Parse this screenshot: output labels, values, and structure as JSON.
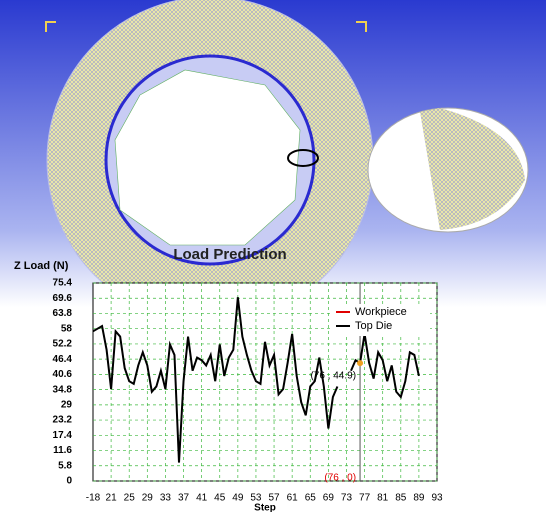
{
  "chart_data": {
    "type": "line",
    "title": "Load Prediction",
    "y_label": "Z Load (N)",
    "x_label": "Step",
    "x_axis_start_label": "-18",
    "xlim": [
      17,
      93
    ],
    "xticks": [
      21,
      25,
      29,
      33,
      37,
      41,
      45,
      49,
      53,
      57,
      61,
      65,
      69,
      73,
      77,
      81,
      85,
      89,
      93
    ],
    "ylim": [
      0,
      75.4
    ],
    "yticks": [
      0,
      5.8,
      11.6,
      17.4,
      23.2,
      29,
      34.8,
      40.6,
      46.4,
      52.2,
      58,
      63.8,
      69.6,
      75.4
    ],
    "grid": true,
    "x": [
      17,
      18,
      19,
      20,
      21,
      22,
      23,
      24,
      25,
      26,
      27,
      28,
      29,
      30,
      31,
      32,
      33,
      34,
      35,
      36,
      37,
      38,
      39,
      40,
      41,
      42,
      43,
      44,
      45,
      46,
      47,
      48,
      49,
      50,
      51,
      52,
      53,
      54,
      55,
      56,
      57,
      58,
      59,
      60,
      61,
      62,
      63,
      64,
      65,
      66,
      67,
      68,
      69,
      70,
      71,
      72,
      73,
      74,
      75,
      76,
      77,
      78,
      79,
      80,
      81,
      82,
      83,
      84,
      85,
      86,
      87,
      88,
      89
    ],
    "series": [
      {
        "name": "Workpiece",
        "color": "#e00000"
      },
      {
        "name": "Top Die",
        "color": "#000000",
        "values": [
          57,
          58,
          59,
          50,
          35,
          57,
          55,
          43,
          38,
          37,
          44,
          49,
          44,
          34,
          36,
          42,
          35,
          52,
          48,
          7,
          38,
          55,
          42,
          47,
          46,
          44,
          48,
          38,
          52,
          40,
          47,
          50,
          70,
          55,
          48,
          42,
          38,
          37,
          53,
          44,
          48,
          33,
          35,
          45,
          56,
          40,
          30,
          25,
          36,
          38,
          47,
          36,
          20,
          32,
          36,
          null,
          null,
          42,
          46,
          44.9,
          56,
          45,
          39,
          49,
          46,
          38,
          44,
          34,
          32,
          38,
          49,
          48,
          40
        ]
      }
    ],
    "cursor_x": 76,
    "annotations": [
      {
        "text": "(76 , 44.9)",
        "color": "#000000"
      },
      {
        "text": "(76 , 0)",
        "color": "#e00000"
      }
    ]
  }
}
